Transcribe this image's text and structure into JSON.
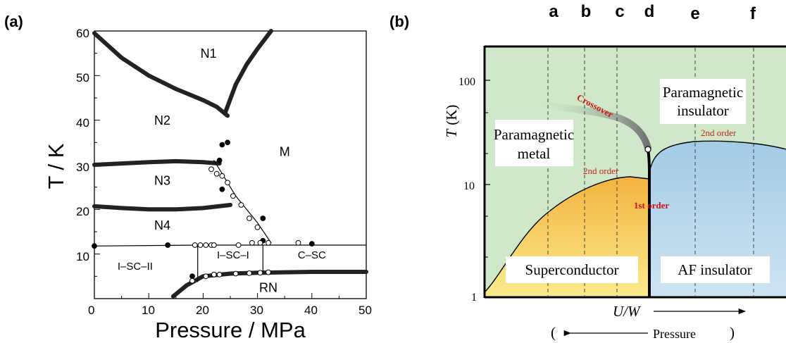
{
  "chart_data": [
    {
      "panel": "(a)",
      "type": "scatter",
      "xlabel": "Pressure / MPa",
      "ylabel": "T / K",
      "xlim": [
        0,
        50
      ],
      "ylim": [
        0,
        60
      ],
      "xticks": [
        "0",
        "10",
        "20",
        "30",
        "40",
        "50"
      ],
      "yticks": [
        "10",
        "20",
        "30",
        "40",
        "50",
        "60"
      ],
      "regions": [
        {
          "label": "N1",
          "x": 21,
          "y": 54
        },
        {
          "label": "N2",
          "x": 12.5,
          "y": 39
        },
        {
          "label": "N3",
          "x": 12.5,
          "y": 25.5
        },
        {
          "label": "N4",
          "x": 12.5,
          "y": 15.5
        },
        {
          "label": "M",
          "x": 35,
          "y": 32
        },
        {
          "label": "I–SC–II",
          "x": 7.5,
          "y": 6.5
        },
        {
          "label": "I–SC–I",
          "x": 25.5,
          "y": 9
        },
        {
          "label": "C–SC",
          "x": 40,
          "y": 9
        },
        {
          "label": "RN",
          "x": 32,
          "y": 1.5
        }
      ],
      "series": [
        {
          "style": "thick",
          "x": [
            0,
            5,
            10,
            15,
            20,
            22.5,
            24.5
          ],
          "y": [
            59.5,
            54,
            50,
            47,
            44.5,
            43,
            41
          ]
        },
        {
          "style": "thick",
          "x": [
            24,
            26,
            28,
            30,
            32.5
          ],
          "y": [
            41.5,
            48,
            52.5,
            56,
            60
          ]
        },
        {
          "style": "thick",
          "x": [
            0,
            5,
            10,
            15,
            20,
            23
          ],
          "y": [
            30,
            30.3,
            30.6,
            30.8,
            30.6,
            30.3
          ]
        },
        {
          "style": "thick",
          "x": [
            0,
            5,
            10,
            15,
            20,
            25
          ],
          "y": [
            20.7,
            20.3,
            20,
            20,
            20.3,
            21
          ]
        },
        {
          "style": "thick",
          "x": [
            14.5,
            17,
            20,
            25,
            30,
            35,
            40,
            45,
            50
          ],
          "y": [
            0.5,
            3,
            5,
            5.6,
            5.8,
            5.9,
            6,
            6,
            6
          ]
        },
        {
          "style": "line",
          "x": [
            0,
            10,
            20,
            30,
            32.5,
            40,
            50
          ],
          "y": [
            11.8,
            11.9,
            12,
            12,
            12,
            12,
            12
          ]
        },
        {
          "style": "line",
          "x": [
            22,
            26,
            30,
            32.5
          ],
          "y": [
            31,
            23,
            17,
            12.5
          ]
        },
        {
          "style": "vline",
          "x": [
            19,
            19
          ],
          "y": [
            3.8,
            12
          ]
        },
        {
          "style": "vline",
          "x": [
            31,
            31
          ],
          "y": [
            5.8,
            12
          ]
        },
        {
          "style": "filled",
          "x": [
            0,
            13.5,
            23.5,
            24.5,
            23,
            23.5,
            31,
            40,
            31,
            18
          ],
          "y": [
            11.8,
            12,
            34.5,
            35,
            31,
            24.5,
            18,
            12.3,
            13,
            5
          ]
        },
        {
          "style": "open",
          "x": [
            21.5,
            22.5,
            23.5,
            24.5,
            25.5,
            27,
            28.5,
            30,
            18.5,
            19.5,
            20.5,
            21.5,
            22,
            26.5,
            29,
            30.5,
            32,
            37.5,
            18,
            20.5,
            22,
            23,
            26,
            28.5,
            30.5,
            32
          ],
          "y": [
            29,
            28,
            27.5,
            26,
            23,
            21,
            18,
            16,
            12,
            12,
            12,
            12,
            12,
            12,
            12.5,
            12.5,
            12.5,
            12.5,
            4,
            5,
            5.4,
            5.4,
            5.6,
            5.7,
            5.8,
            5.9
          ]
        }
      ]
    },
    {
      "panel": "(b)",
      "type": "area",
      "xlabel": "U/W",
      "ylabel": "T  (K)",
      "ylog": true,
      "ylim": [
        1,
        200
      ],
      "yticks": [
        "1",
        "10",
        "100"
      ],
      "columns": [
        "a",
        "b",
        "c",
        "d",
        "e",
        "f"
      ],
      "phases": [
        "Paramagnetic metal",
        "Paramagnetic insulator",
        "Superconductor",
        "AF insulator"
      ],
      "annotations": [
        "Crossover",
        "2nd order",
        "2nd order",
        "1st order"
      ],
      "pressure_label": "Pressure",
      "colors": {
        "background": "#cfe8c9",
        "superconductor": "#f3b33e",
        "af_insulator": "#9ec7e2",
        "red": "#cc1111"
      }
    }
  ],
  "labels": {
    "panel_a": "(a)",
    "panel_b": "(b)",
    "a_xlabel": "Pressure / MPa",
    "a_ylabel": "T / K",
    "b_xlabel": "U/W",
    "b_ylabel_italic": "T",
    "b_ylabel_unit": "(K)",
    "b_pressure": "Pressure",
    "b_paren_open": "(",
    "b_paren_close": ")",
    "col_a": "a",
    "col_b": "b",
    "col_c": "c",
    "col_d": "d",
    "col_e": "e",
    "col_f": "f",
    "pm_metal_1": "Paramagnetic",
    "pm_metal_2": "metal",
    "pm_ins_1": "Paramagnetic",
    "pm_ins_2": "insulator",
    "superconductor": "Superconductor",
    "af_insulator": "AF insulator",
    "crossover": "Crossover",
    "second_order_1": "2nd order",
    "second_order_2": "2nd order",
    "first_order": "1st order",
    "b_tick_1": "1",
    "b_tick_10": "10",
    "b_tick_100": "100"
  }
}
